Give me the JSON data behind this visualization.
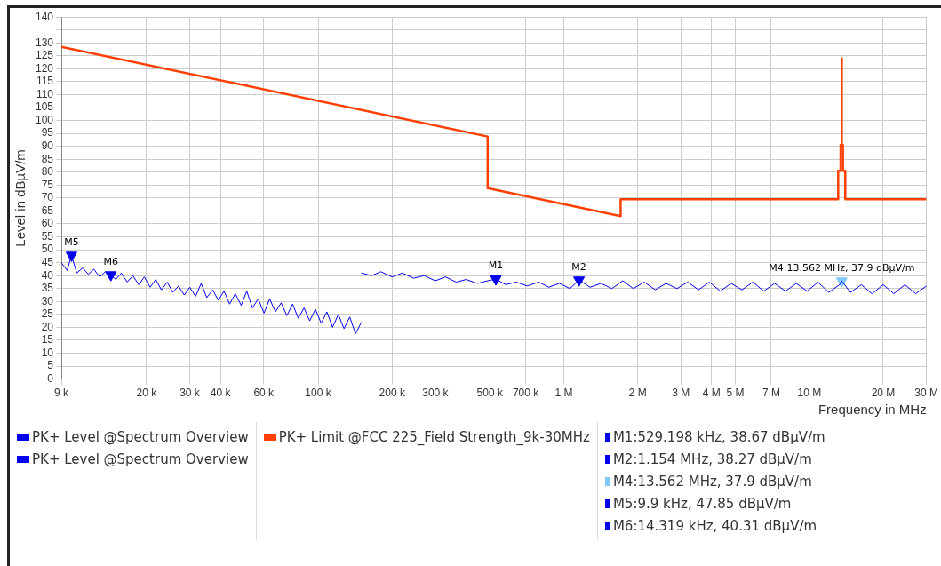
{
  "chart_data": {
    "type": "line",
    "xlabel": "Frequency in MHz",
    "ylabel": "Level in dBµV/m",
    "xlim": [
      9000,
      30000000
    ],
    "ylim": [
      0,
      140
    ],
    "xticks": [
      {
        "value": 9000,
        "label": "9 k"
      },
      {
        "value": 20000,
        "label": "20 k"
      },
      {
        "value": 30000,
        "label": "30 k"
      },
      {
        "value": 40000,
        "label": "40 k"
      },
      {
        "value": 60000,
        "label": "60 k"
      },
      {
        "value": 100000,
        "label": "100 k"
      },
      {
        "value": 200000,
        "label": "200 k"
      },
      {
        "value": 300000,
        "label": "300 k"
      },
      {
        "value": 500000,
        "label": "500 k"
      },
      {
        "value": 700000,
        "label": "700 k"
      },
      {
        "value": 1000000,
        "label": "1 M"
      },
      {
        "value": 2000000,
        "label": "2 M"
      },
      {
        "value": 3000000,
        "label": "3 M"
      },
      {
        "value": 4000000,
        "label": "4 M"
      },
      {
        "value": 5000000,
        "label": "5 M"
      },
      {
        "value": 7000000,
        "label": "7 M"
      },
      {
        "value": 10000000,
        "label": "10 M"
      },
      {
        "value": 20000000,
        "label": "20 M"
      },
      {
        "value": 30000000,
        "label": "30 M"
      }
    ],
    "yticks": [
      0,
      5,
      10,
      15,
      20,
      25,
      30,
      35,
      40,
      45,
      50,
      55,
      60,
      65,
      70,
      75,
      80,
      85,
      90,
      95,
      100,
      105,
      110,
      115,
      120,
      125,
      130,
      {
        "value": 135,
        "label": null
      },
      140
    ],
    "log": "x",
    "grid": true,
    "legend": "bottom",
    "line_style": "solid",
    "series": [
      {
        "name": "PK+ Level @Spectrum Overview",
        "color": "#0000ee",
        "marker": "none",
        "x": [
          9000,
          9500,
          9900,
          10400,
          11000,
          11600,
          12200,
          12900,
          13600,
          14319,
          15000,
          15800,
          16700,
          17600,
          18600,
          19600,
          20700,
          21800,
          23000,
          24300,
          25600,
          27000,
          28500,
          30000,
          31700,
          33400,
          35200,
          37200,
          39200,
          41400,
          43600,
          46000,
          48600,
          51200,
          54000,
          57000,
          60200,
          63500,
          67000,
          70700,
          74600,
          78700,
          83000,
          87600,
          92400,
          97500,
          102900,
          108500,
          114500,
          120800,
          127500,
          134500,
          142000,
          150000
        ],
        "values": [
          45,
          42,
          47.85,
          41,
          43,
          40.5,
          42.5,
          39.5,
          41.5,
          40.31,
          38.5,
          41,
          37.5,
          40,
          36.5,
          39.5,
          35.5,
          38.5,
          34.5,
          37.5,
          33.5,
          36,
          32.5,
          35.5,
          32,
          37,
          31.5,
          34.5,
          30.5,
          34,
          29,
          33,
          28.5,
          34,
          27.5,
          31,
          25.5,
          31,
          26,
          29.5,
          24.5,
          29,
          23.5,
          27.5,
          22.5,
          27,
          21.5,
          26,
          20,
          25,
          19.5,
          24,
          17.5,
          22
        ]
      },
      {
        "name": "PK+ Level @Spectrum Overview",
        "color": "#0000ee",
        "marker": "none",
        "x": [
          150000,
          165000,
          180000,
          200000,
          220000,
          245000,
          270000,
          300000,
          330000,
          365000,
          400000,
          445000,
          490000,
          529198,
          580000,
          640000,
          710000,
          790000,
          870000,
          960000,
          1060000,
          1154000,
          1280000,
          1420000,
          1570000,
          1740000,
          1920000,
          2130000,
          2360000,
          2610000,
          2890000,
          3200000,
          3540000,
          3920000,
          4340000,
          4800000,
          5320000,
          5890000,
          6520000,
          7220000,
          8000000,
          8850000,
          9800000,
          10850000,
          12000000,
          13290000,
          13562000,
          14700000,
          16300000,
          18000000,
          20000000,
          22100000,
          24500000,
          27100000,
          30000000
        ],
        "values": [
          41,
          40,
          41.5,
          39.5,
          41,
          39,
          40,
          38,
          39.5,
          37.5,
          38.5,
          37,
          38,
          38.67,
          36.5,
          37.5,
          36,
          37.5,
          35.5,
          37,
          35,
          38.27,
          35.5,
          37,
          35,
          38,
          35,
          37.5,
          34.5,
          37,
          35,
          37.5,
          34.5,
          37.5,
          34,
          37,
          34.5,
          37.5,
          34,
          37,
          34,
          37,
          34,
          37.5,
          33.5,
          36.5,
          37.9,
          33.5,
          36.5,
          33,
          36.5,
          33,
          36.5,
          33,
          36
        ]
      },
      {
        "name": "PK+ Limit @FCC 225_Field Strength_9k-30MHz",
        "color": "#ff4000",
        "marker": "none",
        "x": [
          9000,
          490000,
          490000,
          1705000,
          1705000,
          13110000,
          13110000,
          13410000,
          13410000,
          13553000,
          13553000,
          13567000,
          13567000,
          13710000,
          13710000,
          14010000,
          14010000,
          30000000
        ],
        "values": [
          128.5,
          93.8,
          73.8,
          63,
          69.5,
          69.5,
          80.5,
          80.5,
          90.5,
          90.5,
          124,
          124,
          90.5,
          90.5,
          80.5,
          80.5,
          69.5,
          69.5
        ]
      },
      {
        "type": "scatter",
        "marker": "triangle",
        "x": [
          529198,
          1154000,
          13562000,
          9900,
          14319
        ],
        "values": [
          38.67,
          38.27,
          37.9,
          47.85,
          40.31
        ],
        "colors": [
          "#0000ee",
          "#0000ee",
          "#80c8ff",
          "#0000ee",
          "#0000ee"
        ],
        "value_labels": [
          "M1",
          "M2",
          "M4:13.562 MHz, 37.9 dBµV/m",
          "M5",
          "M6"
        ]
      }
    ],
    "annotations": [
      "M1:529.198 kHz, 38.67 dBµV/m",
      "M2:1.154 MHz, 38.27 dBµV/m",
      "M4:13.562 MHz, 37.9 dBµV/m",
      "M5:9.9 kHz, 47.85 dBµV/m",
      "M6:14.319 kHz, 40.31 dBµV/m"
    ]
  }
}
